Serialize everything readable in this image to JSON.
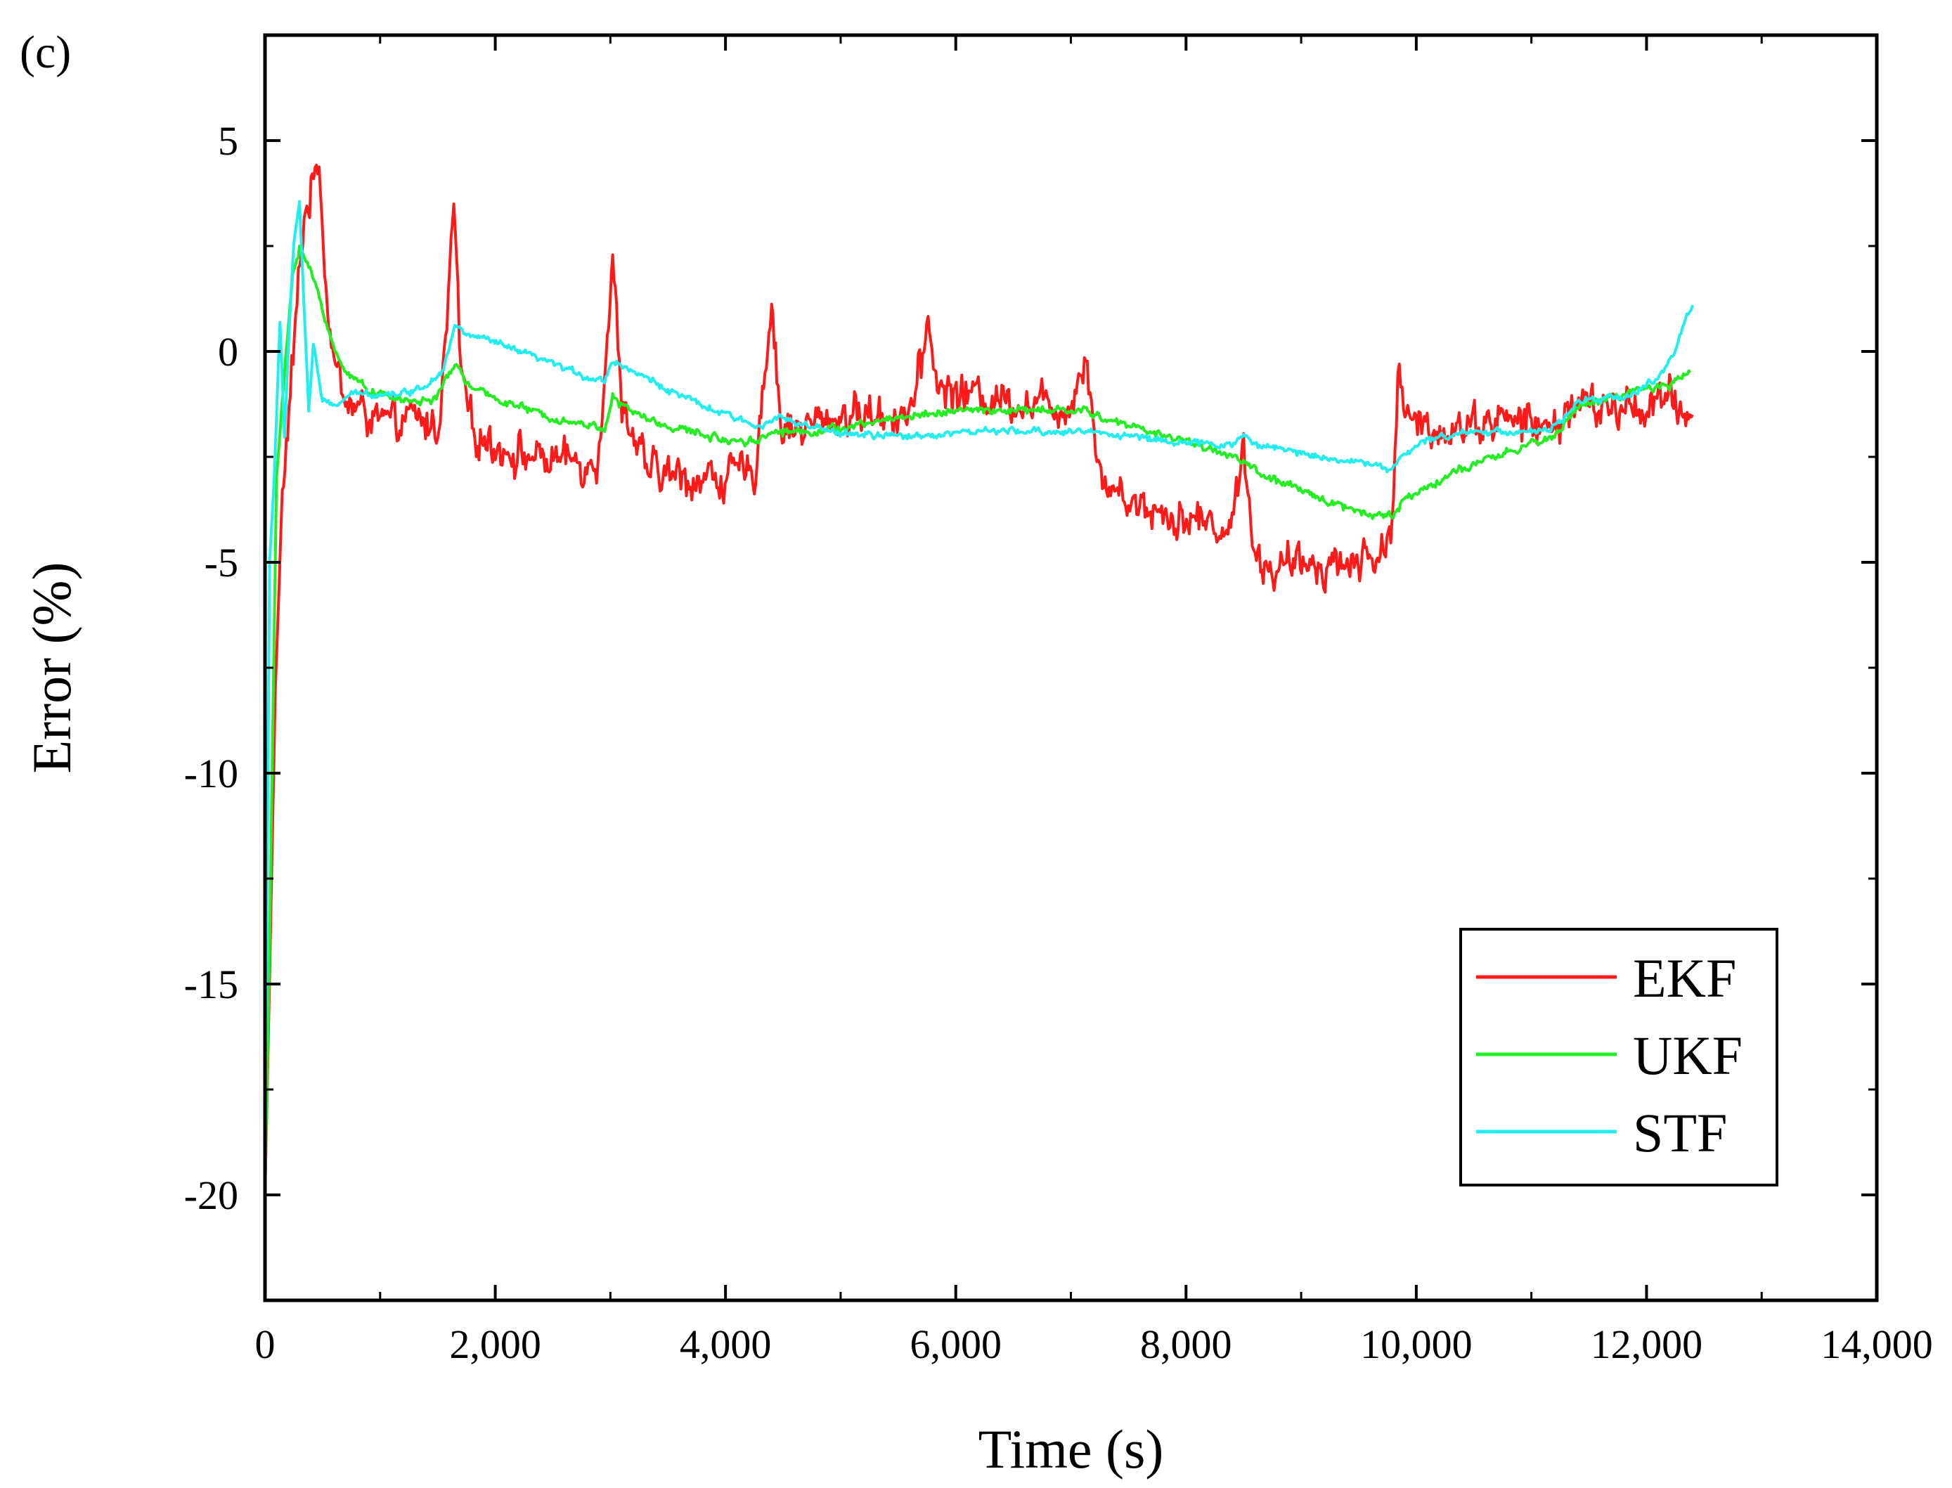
{
  "panel_label": "(c)",
  "colors": {
    "ekf": "#ff1a1a",
    "ukf": "#22ee22",
    "stf": "#22eeee",
    "axis": "#000000"
  },
  "chart_data": {
    "type": "line",
    "title": "",
    "xlabel": "Time (s)",
    "ylabel": "Error (%)",
    "xlim": [
      0,
      14000
    ],
    "ylim": [
      -22.5,
      7.5
    ],
    "xticks": [
      0,
      2000,
      4000,
      6000,
      8000,
      10000,
      12000,
      14000
    ],
    "xtick_labels": [
      "0",
      "2,000",
      "4,000",
      "6,000",
      "8,000",
      "10,000",
      "12,000",
      "14,000"
    ],
    "yticks": [
      -20,
      -15,
      -10,
      -5,
      0,
      5
    ],
    "ytick_labels": [
      "-20",
      "-15",
      "-10",
      "-5",
      "0",
      "5"
    ],
    "legend_position": "bottom-right",
    "series": [
      {
        "name": "EKF",
        "color_key": "ekf",
        "noise": 0.6,
        "points": [
          [
            0,
            -20
          ],
          [
            40,
            -14.8
          ],
          [
            90,
            -8
          ],
          [
            150,
            -3.5
          ],
          [
            220,
            -1
          ],
          [
            290,
            1.5
          ],
          [
            340,
            3.2
          ],
          [
            400,
            3.8
          ],
          [
            470,
            4.7
          ],
          [
            530,
            1.5
          ],
          [
            600,
            -0.2
          ],
          [
            700,
            -1.2
          ],
          [
            900,
            -1.5
          ],
          [
            1100,
            -1.8
          ],
          [
            1300,
            -1.6
          ],
          [
            1500,
            -1.8
          ],
          [
            1580,
            0.5
          ],
          [
            1640,
            3.6
          ],
          [
            1700,
            -0.5
          ],
          [
            1800,
            -1.9
          ],
          [
            2000,
            -2.2
          ],
          [
            2300,
            -2.5
          ],
          [
            2600,
            -2.6
          ],
          [
            2880,
            -2.6
          ],
          [
            2950,
            -0.5
          ],
          [
            3020,
            2.1
          ],
          [
            3100,
            -1.2
          ],
          [
            3300,
            -2.8
          ],
          [
            3600,
            -3.0
          ],
          [
            3900,
            -3.0
          ],
          [
            4250,
            -2.9
          ],
          [
            4320,
            -1
          ],
          [
            4400,
            1.2
          ],
          [
            4480,
            -1.8
          ],
          [
            4700,
            -1.8
          ],
          [
            5000,
            -1.5
          ],
          [
            5300,
            -1.5
          ],
          [
            5600,
            -1.4
          ],
          [
            5700,
            -0.5
          ],
          [
            5760,
            0.8
          ],
          [
            5850,
            -0.9
          ],
          [
            6100,
            -1.0
          ],
          [
            6400,
            -1.1
          ],
          [
            6700,
            -1.2
          ],
          [
            7000,
            -1.3
          ],
          [
            7080,
            -0.5
          ],
          [
            7130,
            0.1
          ],
          [
            7250,
            -3.0
          ],
          [
            7500,
            -3.5
          ],
          [
            7800,
            -3.8
          ],
          [
            8100,
            -4.0
          ],
          [
            8400,
            -4.2
          ],
          [
            8500,
            -2.0
          ],
          [
            8600,
            -5.0
          ],
          [
            8800,
            -5.2
          ],
          [
            9100,
            -5.0
          ],
          [
            9400,
            -5.0
          ],
          [
            9700,
            -4.8
          ],
          [
            9790,
            -4.0
          ],
          [
            9840,
            -0.7
          ],
          [
            9950,
            -1.8
          ],
          [
            10300,
            -1.8
          ],
          [
            10700,
            -1.6
          ],
          [
            11000,
            -1.7
          ],
          [
            11200,
            -1.9
          ],
          [
            11350,
            -1.2
          ],
          [
            11600,
            -1.4
          ],
          [
            11900,
            -1.3
          ],
          [
            12200,
            -1.2
          ],
          [
            12400,
            -1.5
          ]
        ]
      },
      {
        "name": "UKF",
        "color_key": "ukf",
        "noise": 0.12,
        "points": [
          [
            0,
            -20
          ],
          [
            40,
            -14
          ],
          [
            100,
            -3
          ],
          [
            170,
            -0.5
          ],
          [
            240,
            1.8
          ],
          [
            300,
            2.5
          ],
          [
            380,
            2.0
          ],
          [
            460,
            1.4
          ],
          [
            520,
            0.8
          ],
          [
            620,
            -0.1
          ],
          [
            750,
            -0.6
          ],
          [
            900,
            -0.9
          ],
          [
            1100,
            -1.1
          ],
          [
            1300,
            -1.2
          ],
          [
            1500,
            -1.1
          ],
          [
            1600,
            -0.5
          ],
          [
            1650,
            -0.3
          ],
          [
            1800,
            -0.9
          ],
          [
            2100,
            -1.2
          ],
          [
            2400,
            -1.5
          ],
          [
            2700,
            -1.7
          ],
          [
            2950,
            -1.8
          ],
          [
            3020,
            -1.1
          ],
          [
            3100,
            -1.3
          ],
          [
            3400,
            -1.7
          ],
          [
            3700,
            -1.9
          ],
          [
            4000,
            -2.1
          ],
          [
            4300,
            -2.1
          ],
          [
            4400,
            -1.9
          ],
          [
            4700,
            -1.9
          ],
          [
            5100,
            -1.8
          ],
          [
            5400,
            -1.6
          ],
          [
            5700,
            -1.5
          ],
          [
            6000,
            -1.4
          ],
          [
            6400,
            -1.4
          ],
          [
            6800,
            -1.4
          ],
          [
            7100,
            -1.4
          ],
          [
            7300,
            -1.6
          ],
          [
            7700,
            -1.9
          ],
          [
            8100,
            -2.2
          ],
          [
            8500,
            -2.6
          ],
          [
            8700,
            -3.0
          ],
          [
            9100,
            -3.4
          ],
          [
            9500,
            -3.8
          ],
          [
            9800,
            -3.9
          ],
          [
            9900,
            -3.5
          ],
          [
            10300,
            -2.9
          ],
          [
            10700,
            -2.5
          ],
          [
            11000,
            -2.2
          ],
          [
            11200,
            -2.0
          ],
          [
            11400,
            -1.3
          ],
          [
            11700,
            -1.1
          ],
          [
            12000,
            -0.9
          ],
          [
            12200,
            -0.8
          ],
          [
            12380,
            -0.5
          ]
        ]
      },
      {
        "name": "STF",
        "color_key": "stf",
        "noise": 0.1,
        "points": [
          [
            0,
            -19
          ],
          [
            40,
            -5
          ],
          [
            80,
            -3
          ],
          [
            130,
            0.7
          ],
          [
            170,
            -2
          ],
          [
            210,
            0.5
          ],
          [
            250,
            2.5
          ],
          [
            300,
            3.6
          ],
          [
            340,
            1.0
          ],
          [
            380,
            -1.4
          ],
          [
            420,
            0.2
          ],
          [
            500,
            -1.2
          ],
          [
            600,
            -1.3
          ],
          [
            700,
            -1.1
          ],
          [
            800,
            -1.0
          ],
          [
            1000,
            -1.0
          ],
          [
            1200,
            -1.0
          ],
          [
            1400,
            -0.8
          ],
          [
            1550,
            -0.4
          ],
          [
            1650,
            0.6
          ],
          [
            1750,
            0.4
          ],
          [
            1900,
            0.3
          ],
          [
            2200,
            0.0
          ],
          [
            2500,
            -0.3
          ],
          [
            2800,
            -0.6
          ],
          [
            2950,
            -0.7
          ],
          [
            3020,
            -0.2
          ],
          [
            3150,
            -0.4
          ],
          [
            3500,
            -0.9
          ],
          [
            3800,
            -1.3
          ],
          [
            4100,
            -1.6
          ],
          [
            4300,
            -1.8
          ],
          [
            4420,
            -1.5
          ],
          [
            4600,
            -1.7
          ],
          [
            4900,
            -1.9
          ],
          [
            5300,
            -2.0
          ],
          [
            5700,
            -2.0
          ],
          [
            6100,
            -1.9
          ],
          [
            6500,
            -1.9
          ],
          [
            6900,
            -1.9
          ],
          [
            7200,
            -1.9
          ],
          [
            7500,
            -2.0
          ],
          [
            7800,
            -2.1
          ],
          [
            8100,
            -2.2
          ],
          [
            8400,
            -2.2
          ],
          [
            8500,
            -2.0
          ],
          [
            8600,
            -2.2
          ],
          [
            9000,
            -2.4
          ],
          [
            9400,
            -2.6
          ],
          [
            9700,
            -2.7
          ],
          [
            9780,
            -2.8
          ],
          [
            9880,
            -2.5
          ],
          [
            10100,
            -2.1
          ],
          [
            10400,
            -1.9
          ],
          [
            10800,
            -1.9
          ],
          [
            11100,
            -1.9
          ],
          [
            11250,
            -1.7
          ],
          [
            11400,
            -1.2
          ],
          [
            11700,
            -1.1
          ],
          [
            11900,
            -1.0
          ],
          [
            12100,
            -0.6
          ],
          [
            12250,
            0.0
          ],
          [
            12350,
            0.9
          ],
          [
            12400,
            1.1
          ]
        ]
      }
    ]
  }
}
